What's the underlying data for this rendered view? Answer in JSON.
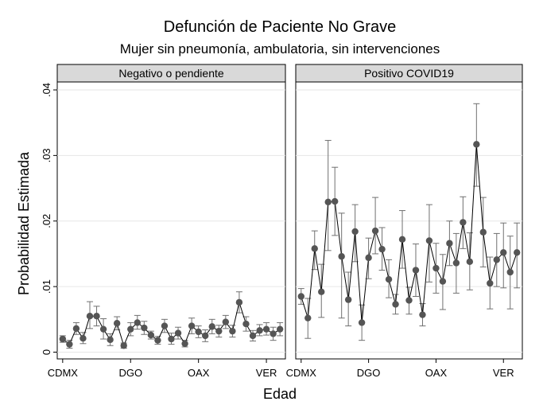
{
  "chart_data": {
    "type": "scatter",
    "title": "Defunción de Paciente No Grave",
    "subtitle": "Mujer sin pneumonía, ambulatoria, sin intervenciones",
    "xlabel": "Edad",
    "ylabel": "Probabilidad Estimada",
    "ylim": [
      0,
      0.04
    ],
    "yticks": [
      0,
      0.01,
      0.02,
      0.03,
      0.04
    ],
    "ytick_labels": [
      "0",
      ".01",
      ".02",
      ".03",
      ".04"
    ],
    "xticks": [
      1,
      11,
      21,
      31
    ],
    "xtick_labels": [
      "CDMX",
      "DGO",
      "OAX",
      "VER"
    ],
    "grid": true,
    "marker_color": "#555555",
    "line_color": "#000000",
    "errorbar_color": "#707070",
    "strip_color": "#d9d9d9",
    "panels": [
      {
        "name": "Negativo o pendiente",
        "x": [
          1,
          2,
          3,
          4,
          5,
          6,
          7,
          8,
          9,
          10,
          11,
          12,
          13,
          14,
          15,
          16,
          17,
          18,
          19,
          20,
          21,
          22,
          23,
          24,
          25,
          26,
          27,
          28,
          29,
          30,
          31,
          32,
          33
        ],
        "y": [
          0.002,
          0.0012,
          0.0036,
          0.0021,
          0.0055,
          0.0055,
          0.0035,
          0.0019,
          0.0044,
          0.001,
          0.0035,
          0.0045,
          0.0037,
          0.0026,
          0.0018,
          0.004,
          0.002,
          0.0029,
          0.0013,
          0.004,
          0.0031,
          0.0025,
          0.0039,
          0.0032,
          0.0046,
          0.0032,
          0.0076,
          0.0043,
          0.0025,
          0.0033,
          0.0035,
          0.0028,
          0.0035
        ],
        "lower": [
          0.0015,
          0.0006,
          0.0027,
          0.0013,
          0.0036,
          0.004,
          0.002,
          0.001,
          0.0034,
          0.0006,
          0.0025,
          0.0035,
          0.0027,
          0.002,
          0.0012,
          0.003,
          0.0012,
          0.002,
          0.0008,
          0.0028,
          0.0022,
          0.0016,
          0.0028,
          0.0023,
          0.0036,
          0.0023,
          0.006,
          0.0032,
          0.0017,
          0.0025,
          0.0026,
          0.0018,
          0.0025
        ],
        "upper": [
          0.0025,
          0.0018,
          0.0045,
          0.003,
          0.0077,
          0.007,
          0.0051,
          0.0028,
          0.0054,
          0.0014,
          0.0045,
          0.0056,
          0.0047,
          0.0032,
          0.0024,
          0.005,
          0.0029,
          0.0038,
          0.0018,
          0.0052,
          0.004,
          0.0034,
          0.005,
          0.0041,
          0.0056,
          0.0041,
          0.0092,
          0.0054,
          0.0033,
          0.0042,
          0.0045,
          0.0038,
          0.0045
        ]
      },
      {
        "name": "Positivo COVID19",
        "x": [
          1,
          2,
          3,
          4,
          5,
          6,
          7,
          8,
          9,
          10,
          11,
          12,
          13,
          14,
          15,
          16,
          17,
          18,
          19,
          20,
          21,
          22,
          23,
          24,
          25,
          26,
          27,
          28,
          29,
          30,
          31,
          32,
          33
        ],
        "y": [
          0.0085,
          0.0052,
          0.0158,
          0.0092,
          0.0229,
          0.023,
          0.0146,
          0.008,
          0.0184,
          0.0045,
          0.0144,
          0.0185,
          0.0157,
          0.0111,
          0.0073,
          0.0172,
          0.0079,
          0.0125,
          0.0057,
          0.017,
          0.0128,
          0.0108,
          0.0166,
          0.0136,
          0.0198,
          0.0138,
          0.0317,
          0.0183,
          0.0105,
          0.0141,
          0.0152,
          0.0122,
          0.0152
        ],
        "lower": [
          0.0073,
          0.0021,
          0.0126,
          0.0053,
          0.0155,
          0.0178,
          0.0052,
          0.004,
          0.0138,
          0.0018,
          0.0112,
          0.015,
          0.0125,
          0.0083,
          0.0058,
          0.0128,
          0.0058,
          0.0085,
          0.004,
          0.0107,
          0.009,
          0.0065,
          0.0132,
          0.009,
          0.0158,
          0.0095,
          0.0253,
          0.013,
          0.0066,
          0.01,
          0.0098,
          0.0066,
          0.0098
        ],
        "upper": [
          0.0097,
          0.0082,
          0.0185,
          0.0134,
          0.0323,
          0.0282,
          0.0212,
          0.0122,
          0.0225,
          0.0072,
          0.0174,
          0.0236,
          0.019,
          0.0141,
          0.0088,
          0.0216,
          0.0099,
          0.0165,
          0.0074,
          0.0225,
          0.0166,
          0.0149,
          0.02,
          0.0181,
          0.0237,
          0.0182,
          0.0379,
          0.0236,
          0.0145,
          0.0181,
          0.0197,
          0.0177,
          0.0197
        ]
      }
    ]
  }
}
